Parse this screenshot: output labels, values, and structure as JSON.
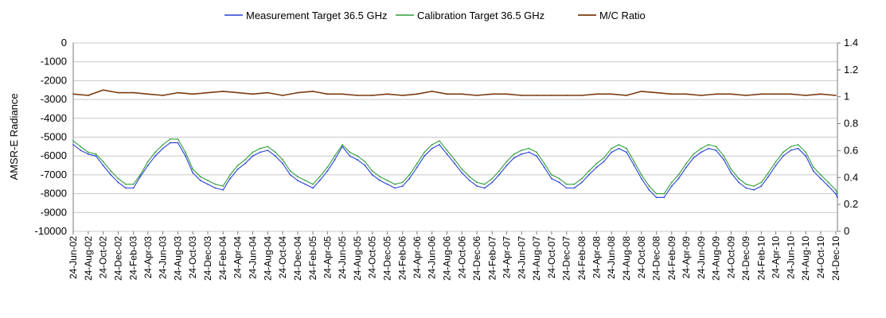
{
  "chart_data": {
    "type": "line",
    "title": "",
    "ylabel_left": "AMSR-E Radiance",
    "ylabel_right": "",
    "ylim_left": [
      -10000,
      0
    ],
    "ylim_right": [
      0,
      1.4
    ],
    "yticks_left": [
      "0",
      "-1000",
      "-2000",
      "-3000",
      "-4000",
      "-5000",
      "-6000",
      "-7000",
      "-8000",
      "-9000",
      "-10000"
    ],
    "yticks_right": [
      "1.4",
      "1.2",
      "1",
      "0.8",
      "0.6",
      "0.4",
      "0.2",
      "0"
    ],
    "x_range": [
      "2002-06-24",
      "2010-12-31"
    ],
    "x_tick_labels": [
      "24-Jun-02",
      "24-Aug-02",
      "24-Oct-02",
      "24-Dec-02",
      "24-Feb-03",
      "24-Apr-03",
      "24-Jun-03",
      "24-Aug-03",
      "24-Oct-03",
      "24-Dec-03",
      "24-Feb-04",
      "24-Apr-04",
      "24-Jun-04",
      "24-Aug-04",
      "24-Oct-04",
      "24-Dec-04",
      "24-Feb-05",
      "24-Apr-05",
      "24-Jun-05",
      "24-Aug-05",
      "24-Oct-05",
      "24-Dec-05",
      "24-Feb-06",
      "24-Apr-06",
      "24-Jun-06",
      "24-Aug-06",
      "24-Oct-06",
      "24-Dec-06",
      "24-Feb-07",
      "24-Apr-07",
      "24-Jun-07",
      "24-Aug-07",
      "24-Oct-07",
      "24-Dec-07",
      "24-Feb-08",
      "24-Apr-08",
      "24-Jun-08",
      "24-Aug-08",
      "24-Oct-08",
      "24-Dec-08",
      "24-Feb-09",
      "24-Apr-09",
      "24-Jun-09",
      "24-Aug-09",
      "24-Oct-09",
      "24-Dec-09",
      "24-Feb-10",
      "24-Apr-10",
      "24-Jun-10",
      "24-Aug-10",
      "24-Oct-10",
      "24-Dec-10"
    ],
    "grid": true,
    "legend_position": "top",
    "series": [
      {
        "name": "Measurement Target 36.5 GHz",
        "axis": "left",
        "color": "#2a3fd6",
        "x": [
          "2002-06-24",
          "2002-07-24",
          "2002-08-24",
          "2002-09-24",
          "2002-10-24",
          "2002-11-24",
          "2002-12-24",
          "2003-01-24",
          "2003-02-24",
          "2003-03-24",
          "2003-04-24",
          "2003-05-24",
          "2003-06-24",
          "2003-07-24",
          "2003-08-24",
          "2003-09-24",
          "2003-10-24",
          "2003-11-24",
          "2003-12-24",
          "2004-01-24",
          "2004-02-24",
          "2004-03-24",
          "2004-04-24",
          "2004-05-24",
          "2004-06-24",
          "2004-07-24",
          "2004-08-24",
          "2004-09-24",
          "2004-10-24",
          "2004-11-24",
          "2004-12-24",
          "2005-01-24",
          "2005-02-24",
          "2005-03-24",
          "2005-04-24",
          "2005-05-24",
          "2005-06-24",
          "2005-07-24",
          "2005-08-24",
          "2005-09-24",
          "2005-10-24",
          "2005-11-24",
          "2005-12-24",
          "2006-01-24",
          "2006-02-24",
          "2006-03-24",
          "2006-04-24",
          "2006-05-24",
          "2006-06-24",
          "2006-07-24",
          "2006-08-24",
          "2006-09-24",
          "2006-10-24",
          "2006-11-24",
          "2006-12-24",
          "2007-01-24",
          "2007-02-24",
          "2007-03-24",
          "2007-04-24",
          "2007-05-24",
          "2007-06-24",
          "2007-07-24",
          "2007-08-24",
          "2007-09-24",
          "2007-10-24",
          "2007-11-24",
          "2007-12-24",
          "2008-01-24",
          "2008-02-24",
          "2008-03-24",
          "2008-04-24",
          "2008-05-24",
          "2008-06-24",
          "2008-07-24",
          "2008-08-24",
          "2008-09-24",
          "2008-10-24",
          "2008-11-24",
          "2008-12-24",
          "2009-01-24",
          "2009-02-24",
          "2009-03-24",
          "2009-04-24",
          "2009-05-24",
          "2009-06-24",
          "2009-07-24",
          "2009-08-24",
          "2009-09-24",
          "2009-10-24",
          "2009-11-24",
          "2009-12-24",
          "2010-01-24",
          "2010-02-24",
          "2010-03-24",
          "2010-04-24",
          "2010-05-24",
          "2010-06-24",
          "2010-07-24",
          "2010-08-24",
          "2010-09-24",
          "2010-10-24",
          "2010-11-24",
          "2010-12-24",
          "2010-12-31"
        ],
        "values": [
          -5400,
          -5700,
          -5900,
          -6000,
          -6500,
          -7000,
          -7400,
          -7700,
          -7700,
          -7100,
          -6500,
          -6000,
          -5600,
          -5300,
          -5300,
          -6000,
          -6900,
          -7300,
          -7500,
          -7700,
          -7800,
          -7200,
          -6700,
          -6400,
          -6000,
          -5800,
          -5700,
          -6000,
          -6400,
          -7000,
          -7300,
          -7500,
          -7700,
          -7300,
          -6800,
          -6200,
          -5500,
          -6000,
          -6200,
          -6500,
          -7000,
          -7300,
          -7500,
          -7700,
          -7600,
          -7200,
          -6600,
          -6000,
          -5600,
          -5400,
          -5900,
          -6400,
          -6900,
          -7300,
          -7600,
          -7700,
          -7400,
          -7000,
          -6500,
          -6100,
          -5900,
          -5800,
          -6000,
          -6600,
          -7200,
          -7400,
          -7700,
          -7700,
          -7400,
          -7000,
          -6600,
          -6300,
          -5800,
          -5600,
          -5800,
          -6500,
          -7200,
          -7800,
          -8200,
          -8200,
          -7600,
          -7200,
          -6600,
          -6100,
          -5800,
          -5600,
          -5700,
          -6200,
          -6900,
          -7400,
          -7700,
          -7800,
          -7600,
          -7100,
          -6500,
          -6000,
          -5700,
          -5600,
          -6000,
          -6800,
          -7200,
          -7600,
          -8000,
          -8200
        ]
      },
      {
        "name": "Calibration Target 36.5 GHz",
        "axis": "left",
        "color": "#2f9e3a",
        "x": [
          "2002-06-24",
          "2002-07-24",
          "2002-08-24",
          "2002-09-24",
          "2002-10-24",
          "2002-11-24",
          "2002-12-24",
          "2003-01-24",
          "2003-02-24",
          "2003-03-24",
          "2003-04-24",
          "2003-05-24",
          "2003-06-24",
          "2003-07-24",
          "2003-08-24",
          "2003-09-24",
          "2003-10-24",
          "2003-11-24",
          "2003-12-24",
          "2004-01-24",
          "2004-02-24",
          "2004-03-24",
          "2004-04-24",
          "2004-05-24",
          "2004-06-24",
          "2004-07-24",
          "2004-08-24",
          "2004-09-24",
          "2004-10-24",
          "2004-11-24",
          "2004-12-24",
          "2005-01-24",
          "2005-02-24",
          "2005-03-24",
          "2005-04-24",
          "2005-05-24",
          "2005-06-24",
          "2005-07-24",
          "2005-08-24",
          "2005-09-24",
          "2005-10-24",
          "2005-11-24",
          "2005-12-24",
          "2006-01-24",
          "2006-02-24",
          "2006-03-24",
          "2006-04-24",
          "2006-05-24",
          "2006-06-24",
          "2006-07-24",
          "2006-08-24",
          "2006-09-24",
          "2006-10-24",
          "2006-11-24",
          "2006-12-24",
          "2007-01-24",
          "2007-02-24",
          "2007-03-24",
          "2007-04-24",
          "2007-05-24",
          "2007-06-24",
          "2007-07-24",
          "2007-08-24",
          "2007-09-24",
          "2007-10-24",
          "2007-11-24",
          "2007-12-24",
          "2008-01-24",
          "2008-02-24",
          "2008-03-24",
          "2008-04-24",
          "2008-05-24",
          "2008-06-24",
          "2008-07-24",
          "2008-08-24",
          "2008-09-24",
          "2008-10-24",
          "2008-11-24",
          "2008-12-24",
          "2009-01-24",
          "2009-02-24",
          "2009-03-24",
          "2009-04-24",
          "2009-05-24",
          "2009-06-24",
          "2009-07-24",
          "2009-08-24",
          "2009-09-24",
          "2009-10-24",
          "2009-11-24",
          "2009-12-24",
          "2010-01-24",
          "2010-02-24",
          "2010-03-24",
          "2010-04-24",
          "2010-05-24",
          "2010-06-24",
          "2010-07-24",
          "2010-08-24",
          "2010-09-24",
          "2010-10-24",
          "2010-11-24",
          "2010-12-24",
          "2010-12-31"
        ],
        "values": [
          -5200,
          -5500,
          -5800,
          -5900,
          -6300,
          -6800,
          -7200,
          -7500,
          -7500,
          -7000,
          -6300,
          -5800,
          -5400,
          -5100,
          -5100,
          -5800,
          -6700,
          -7100,
          -7300,
          -7500,
          -7600,
          -7000,
          -6500,
          -6200,
          -5800,
          -5600,
          -5500,
          -5800,
          -6200,
          -6800,
          -7100,
          -7300,
          -7500,
          -7100,
          -6600,
          -6000,
          -5400,
          -5800,
          -6000,
          -6300,
          -6800,
          -7100,
          -7300,
          -7500,
          -7400,
          -7000,
          -6400,
          -5800,
          -5400,
          -5200,
          -5700,
          -6200,
          -6700,
          -7100,
          -7400,
          -7500,
          -7200,
          -6800,
          -6300,
          -5900,
          -5700,
          -5600,
          -5800,
          -6400,
          -7000,
          -7200,
          -7500,
          -7500,
          -7200,
          -6800,
          -6400,
          -6100,
          -5600,
          -5400,
          -5600,
          -6300,
          -7000,
          -7600,
          -8000,
          -8000,
          -7400,
          -7000,
          -6400,
          -5900,
          -5600,
          -5400,
          -5500,
          -6000,
          -6700,
          -7200,
          -7500,
          -7600,
          -7400,
          -6900,
          -6300,
          -5800,
          -5500,
          -5400,
          -5800,
          -6600,
          -7000,
          -7400,
          -7800,
          -8000
        ]
      },
      {
        "name": "M/C Ratio",
        "axis": "right",
        "color": "#7a3b10",
        "x": [
          "2002-06-24",
          "2002-08-24",
          "2002-10-24",
          "2002-12-24",
          "2003-02-24",
          "2003-04-24",
          "2003-06-24",
          "2003-08-24",
          "2003-10-24",
          "2003-12-24",
          "2004-02-24",
          "2004-04-24",
          "2004-06-24",
          "2004-08-24",
          "2004-10-24",
          "2004-12-24",
          "2005-02-24",
          "2005-04-24",
          "2005-06-24",
          "2005-08-24",
          "2005-10-24",
          "2005-12-24",
          "2006-02-24",
          "2006-04-24",
          "2006-06-24",
          "2006-08-24",
          "2006-10-24",
          "2006-12-24",
          "2007-02-24",
          "2007-04-24",
          "2007-06-24",
          "2007-08-24",
          "2007-10-24",
          "2007-12-24",
          "2008-02-24",
          "2008-04-24",
          "2008-06-24",
          "2008-08-24",
          "2008-10-24",
          "2008-12-24",
          "2009-02-24",
          "2009-04-24",
          "2009-06-24",
          "2009-08-24",
          "2009-10-24",
          "2009-12-24",
          "2010-02-24",
          "2010-04-24",
          "2010-06-24",
          "2010-08-24",
          "2010-10-24",
          "2010-12-24"
        ],
        "values": [
          1.02,
          1.01,
          1.05,
          1.03,
          1.03,
          1.02,
          1.01,
          1.03,
          1.02,
          1.03,
          1.04,
          1.03,
          1.02,
          1.03,
          1.01,
          1.03,
          1.04,
          1.02,
          1.02,
          1.01,
          1.01,
          1.02,
          1.01,
          1.02,
          1.04,
          1.02,
          1.02,
          1.01,
          1.02,
          1.02,
          1.01,
          1.01,
          1.01,
          1.01,
          1.01,
          1.02,
          1.02,
          1.01,
          1.04,
          1.03,
          1.02,
          1.02,
          1.01,
          1.02,
          1.02,
          1.01,
          1.02,
          1.02,
          1.02,
          1.01,
          1.02,
          1.01
        ]
      }
    ]
  }
}
